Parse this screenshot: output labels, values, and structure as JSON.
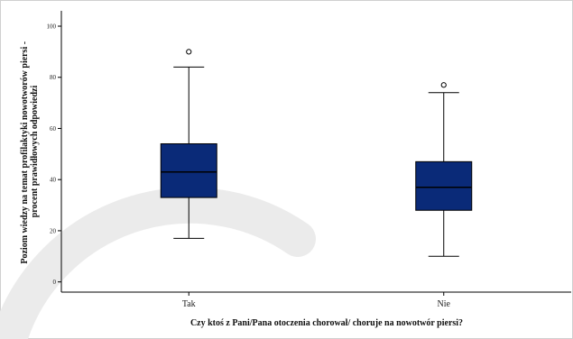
{
  "chart_data": {
    "type": "boxplot",
    "xlabel": "Czy ktoś z Pani/Pana otoczenia chorował/ choruje na nowotwór piersi?",
    "ylabel_lines": [
      "Poziom wiedzy na temat profilaktyki nowotworów piersi -",
      "procent prawidłowych odpowiedzi"
    ],
    "categories": [
      "Tak",
      "Nie"
    ],
    "ylim": [
      -4,
      106
    ],
    "yticks": [
      0,
      20,
      40,
      60,
      80,
      100
    ],
    "boxes": [
      {
        "category": "Tak",
        "whisker_low": 17,
        "q1": 33,
        "median": 43,
        "q3": 54,
        "whisker_high": 84,
        "outliers": [
          90
        ]
      },
      {
        "category": "Nie",
        "whisker_low": 10,
        "q1": 28,
        "median": 37,
        "q3": 47,
        "whisker_high": 74,
        "outliers": [
          77
        ]
      }
    ],
    "box_color": "#0a2a78",
    "grid": false
  }
}
